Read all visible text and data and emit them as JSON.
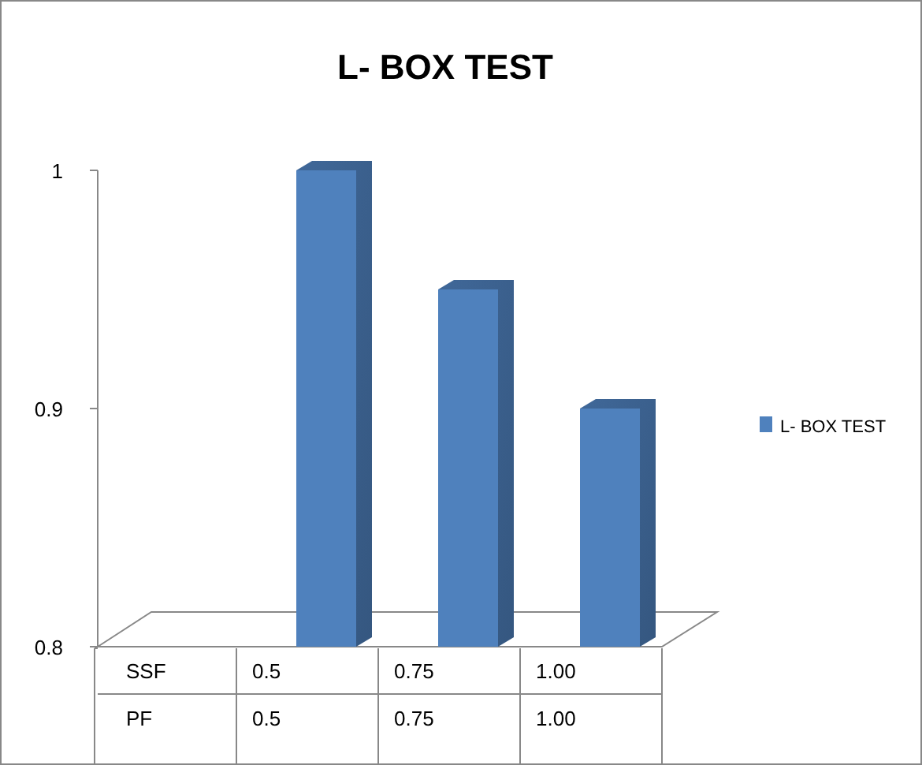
{
  "chart_data": {
    "type": "bar",
    "title": "L- BOX TEST",
    "categories": [
      "0.5",
      "0.75",
      "1.00"
    ],
    "series": [
      {
        "name": "L- BOX TEST",
        "color": "#4f81bd",
        "values": [
          1.0,
          0.95,
          0.9
        ]
      }
    ],
    "ylim": [
      0.8,
      1
    ],
    "yticks": [
      0.8,
      0.9,
      1
    ],
    "grid": false,
    "legend": "right",
    "annotations": [
      "SSF",
      "PF",
      "0.5",
      "0.75",
      "1.00"
    ]
  }
}
